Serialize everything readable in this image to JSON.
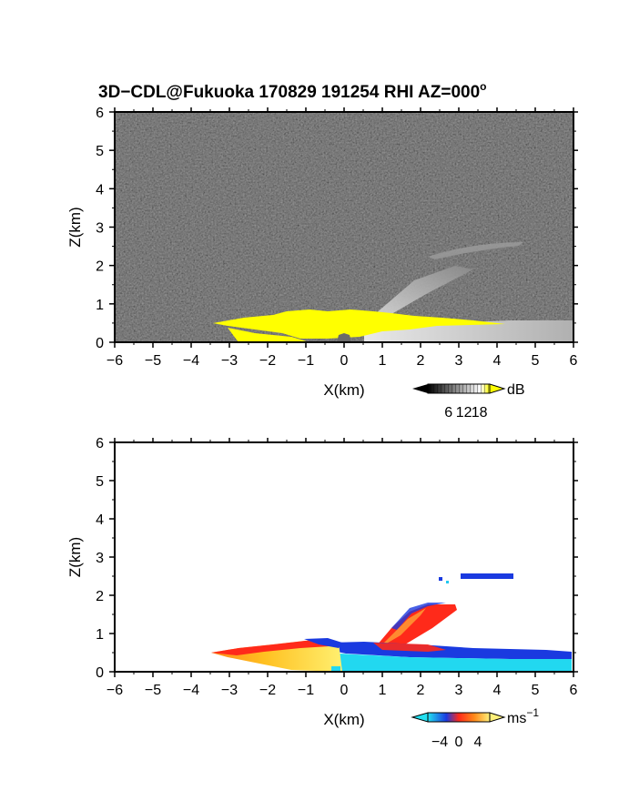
{
  "title": "3D−CDL@Fukuoka 170829 191254 RHI AZ=000",
  "title_sup": "o",
  "colors": {
    "echo_bg_dark": "#2a2a2a",
    "echo_yellow": "#ffff00",
    "vel_blue": "#1a3ae0",
    "vel_cyan": "#22d8f0",
    "vel_red": "#ff2a1a",
    "vel_yellow": "#ffe020"
  },
  "chart_data": [
    {
      "type": "heatmap",
      "name": "reflectivity",
      "xlabel": "X(km)",
      "ylabel": "Z(km)",
      "xlim": [
        -6,
        6
      ],
      "ylim": [
        0,
        6
      ],
      "x_ticks": [
        "−6",
        "−5",
        "−4",
        "−3",
        "−2",
        "−1",
        "0",
        "1",
        "2",
        "3",
        "4",
        "5",
        "6"
      ],
      "y_ticks": [
        "0",
        "1",
        "2",
        "3",
        "4",
        "5",
        "6"
      ],
      "colorbar": {
        "unit": "dB",
        "ticks": [
          "6",
          "12",
          "18"
        ],
        "values": [
          6,
          12,
          18
        ]
      },
      "features": [
        {
          "label": "strong echo near ground",
          "x": [
            -3.4,
            4.5
          ],
          "z": [
            0,
            0.9
          ],
          "dB": 20
        },
        {
          "label": "weak echo near ground (east)",
          "x": [
            0.5,
            6
          ],
          "z": [
            0,
            0.5
          ],
          "dB": 12
        },
        {
          "label": "slanted echo layer",
          "x": [
            0.9,
            3.2
          ],
          "z": [
            0.8,
            1.8
          ],
          "dB": 10
        },
        {
          "label": "upper echo layer",
          "x": [
            2.4,
            4.5
          ],
          "z": [
            2.3,
            2.6
          ],
          "dB": 8
        }
      ]
    },
    {
      "type": "heatmap",
      "name": "doppler velocity",
      "xlabel": "X(km)",
      "ylabel": "Z(km)",
      "xlim": [
        -6,
        6
      ],
      "ylim": [
        0,
        6
      ],
      "x_ticks": [
        "−6",
        "−5",
        "−4",
        "−3",
        "−2",
        "−1",
        "0",
        "1",
        "2",
        "3",
        "4",
        "5",
        "6"
      ],
      "y_ticks": [
        "0",
        "1",
        "2",
        "3",
        "4",
        "5",
        "6"
      ],
      "colorbar": {
        "unit": "ms",
        "unit_sup": "−1",
        "ticks": [
          "−4",
          "0",
          "4"
        ],
        "values": [
          -4,
          0,
          4
        ]
      },
      "features": [
        {
          "label": "positive velocity wedge (west)",
          "x": [
            -3.4,
            -0.2
          ],
          "z": [
            0,
            0.6
          ],
          "ms": 4
        },
        {
          "label": "negative velocity near ground (east)",
          "x": [
            0,
            6
          ],
          "z": [
            0,
            0.5
          ],
          "ms": -3
        },
        {
          "label": "slanted layer",
          "x": [
            0.9,
            3.0
          ],
          "z": [
            0.6,
            1.7
          ],
          "ms": 1
        },
        {
          "label": "upper layer",
          "x": [
            2.6,
            4.5
          ],
          "z": [
            2.3,
            2.55
          ],
          "ms": -3
        }
      ]
    }
  ]
}
